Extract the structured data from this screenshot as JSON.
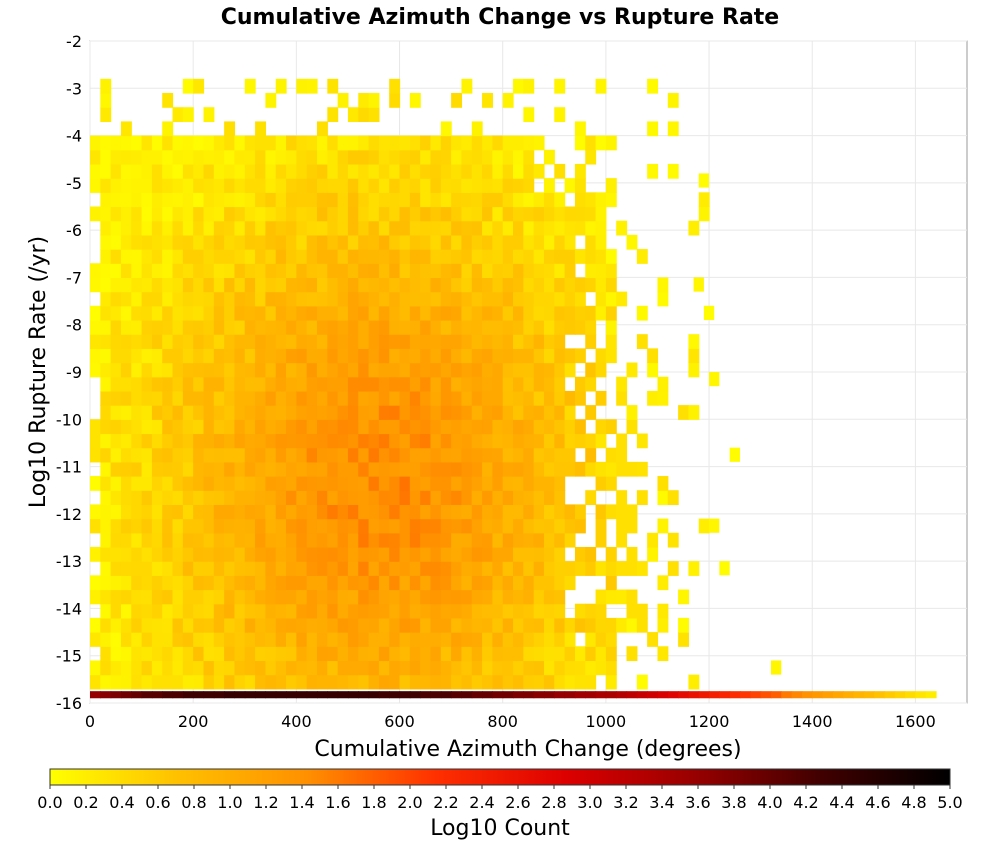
{
  "chart_data": {
    "type": "heatmap",
    "title": "Cumulative Azimuth Change vs Rupture Rate",
    "xlabel": "Cumulative Azimuth Change (degrees)",
    "ylabel": "Log10 Rupture Rate (/yr)",
    "xlim": [
      0,
      1700
    ],
    "ylim": [
      -16,
      -2
    ],
    "x_ticks": [
      "0",
      "200",
      "400",
      "600",
      "800",
      "1000",
      "1200",
      "1400",
      "1600"
    ],
    "y_ticks": [
      "-2",
      "-3",
      "-4",
      "-5",
      "-6",
      "-7",
      "-8",
      "-9",
      "-10",
      "-11",
      "-12",
      "-13",
      "-14",
      "-15",
      "-16"
    ],
    "grid": true,
    "colorbar": {
      "label": "Log10 Count",
      "range": [
        0.0,
        5.0
      ],
      "ticks": [
        "0.0",
        "0.2",
        "0.4",
        "0.6",
        "0.8",
        "1.0",
        "1.2",
        "1.4",
        "1.6",
        "1.8",
        "2.0",
        "2.2",
        "2.4",
        "2.6",
        "2.8",
        "3.0",
        "3.2",
        "3.4",
        "3.6",
        "3.8",
        "4.0",
        "4.2",
        "4.4",
        "4.6",
        "4.8",
        "5.0"
      ],
      "colors": [
        "#ffff00",
        "#ffc000",
        "#ff9000",
        "#ff3000",
        "#dd0000",
        "#990000",
        "#400000",
        "#000000"
      ]
    },
    "bin_width_x": 20,
    "bin_height_y": 0.3,
    "bottom_row": {
      "y": -15.9,
      "x_start": 0,
      "values": [
        3.6,
        3.7,
        3.8,
        3.9,
        4.0,
        4.1,
        4.1,
        4.2,
        4.2,
        4.3,
        4.3,
        4.3,
        4.3,
        4.4,
        4.4,
        4.4,
        4.4,
        4.4,
        4.4,
        4.4,
        4.4,
        4.4,
        4.4,
        4.4,
        4.4,
        4.4,
        4.4,
        4.4,
        4.3,
        4.3,
        4.3,
        4.3,
        4.2,
        4.2,
        4.2,
        4.1,
        4.1,
        4.0,
        4.0,
        3.9,
        3.9,
        3.8,
        3.8,
        3.7,
        3.7,
        3.6,
        3.6,
        3.5,
        3.5,
        3.4,
        3.4,
        3.3,
        3.2,
        3.1,
        3.0,
        2.9,
        2.8,
        2.7,
        2.6,
        2.5,
        2.4,
        2.3,
        2.2,
        2.1,
        2.0,
        1.9,
        1.8,
        1.6,
        1.5,
        1.4,
        1.3,
        1.2,
        1.1,
        1.0,
        0.9,
        0.8,
        0.7,
        0.6,
        0.5,
        0.4,
        0.3,
        0.2
      ]
    },
    "density_model": {
      "description": "Main body: counts rise toward center (x≈400-700, y≈-12 to -9) reaching Log10 Count ≈1.3-1.5, fading to ≈0-0.5 toward edges; sparse isolated bins beyond x≈1000.",
      "x_range": [
        0,
        1200
      ],
      "y_range": [
        -15.7,
        -3.0
      ],
      "peak_x": 550,
      "peak_y": -11.5,
      "peak_value": 1.45,
      "seed": 17
    }
  }
}
